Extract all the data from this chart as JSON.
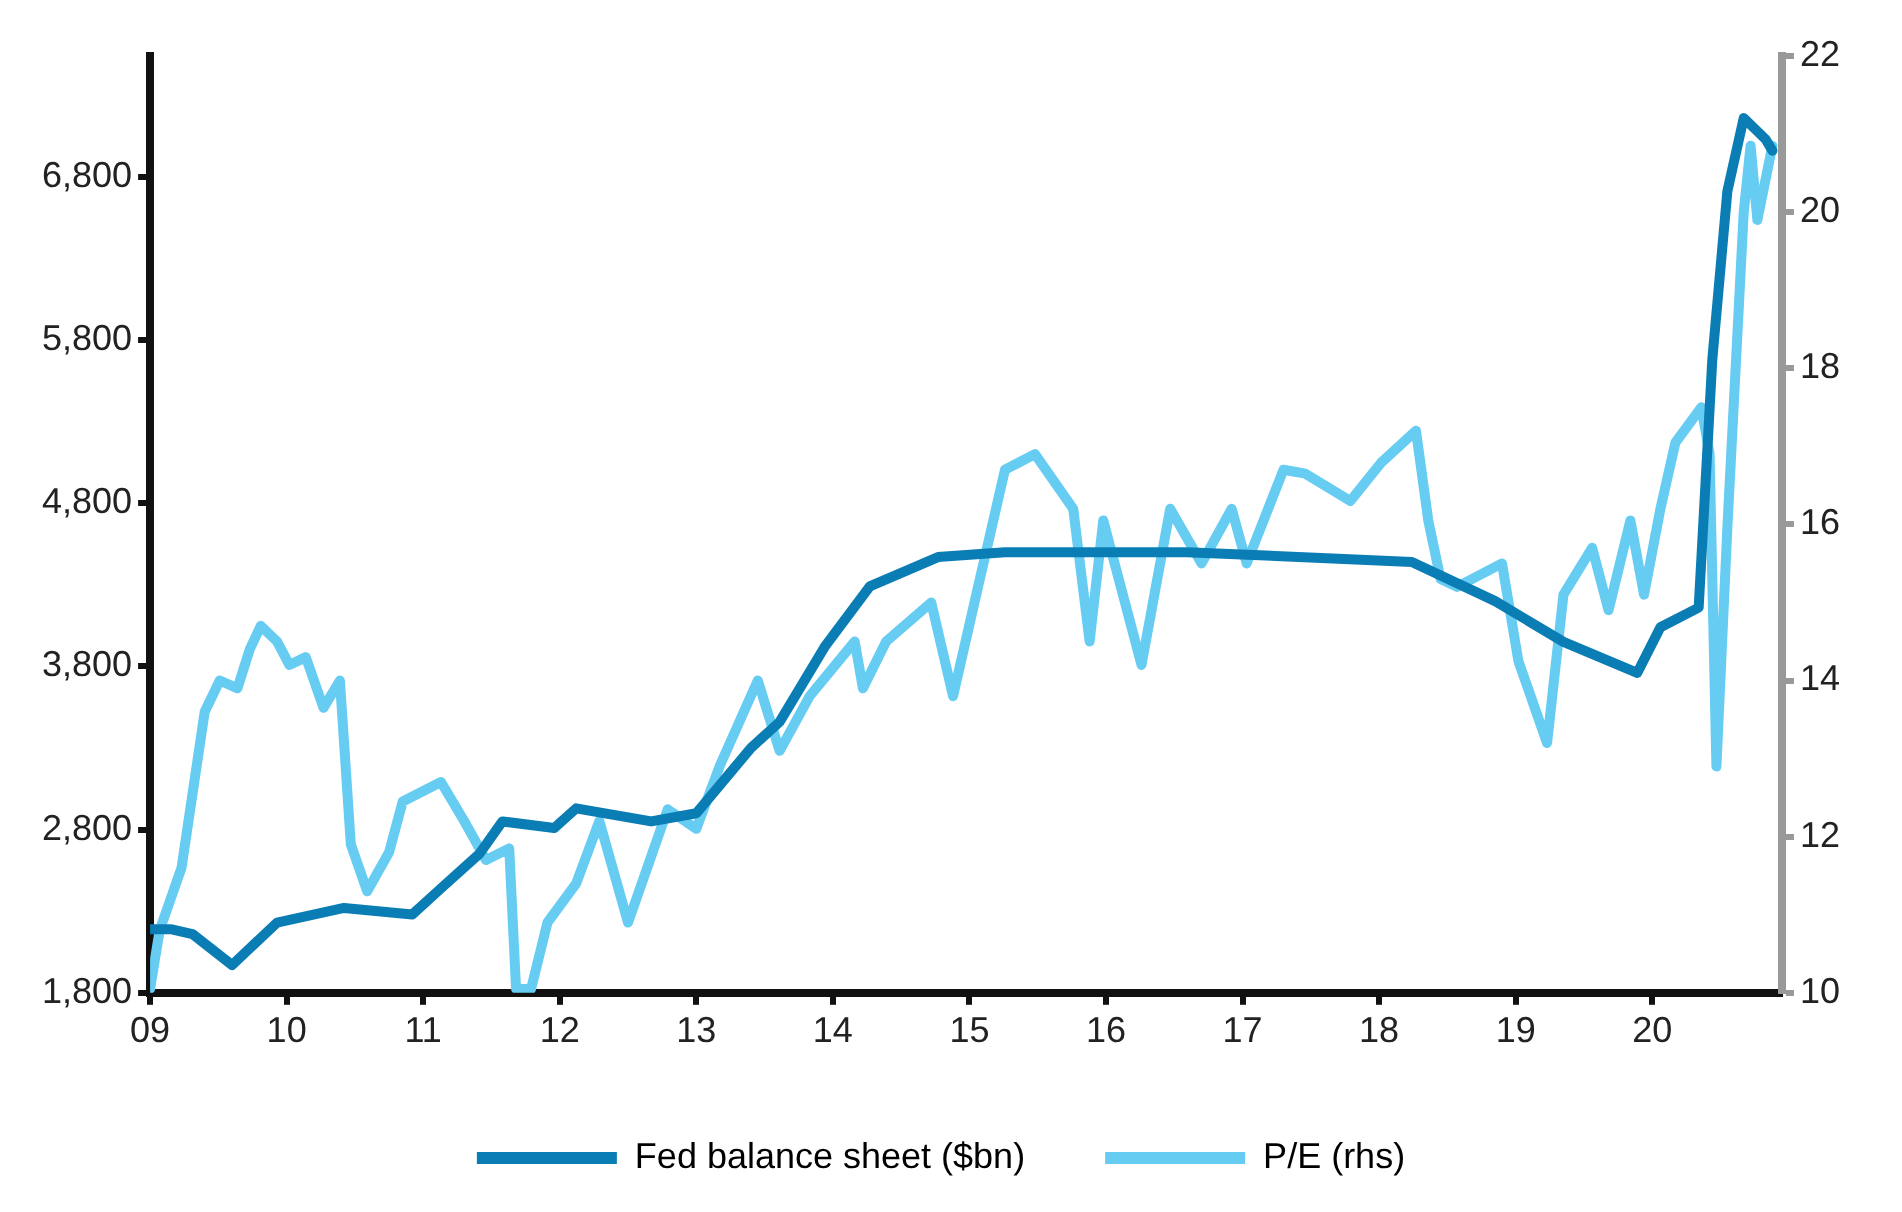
{
  "chart_data": {
    "type": "line",
    "legend": "bottom",
    "grid": false,
    "marker": "none",
    "line_style": "solid",
    "xlim": [
      2009,
      2020.95
    ],
    "xticks": [
      {
        "value": 2009,
        "label": "09"
      },
      {
        "value": 2010,
        "label": "10"
      },
      {
        "value": 2011,
        "label": "11"
      },
      {
        "value": 2012,
        "label": "12"
      },
      {
        "value": 2013,
        "label": "13"
      },
      {
        "value": 2014,
        "label": "14"
      },
      {
        "value": 2015,
        "label": "15"
      },
      {
        "value": 2016,
        "label": "16"
      },
      {
        "value": 2017,
        "label": "17"
      },
      {
        "value": 2018,
        "label": "18"
      },
      {
        "value": 2019,
        "label": "19"
      },
      {
        "value": 2020,
        "label": "20"
      }
    ],
    "ylim": [
      1800,
      7540
    ],
    "yticks": [
      {
        "value": 1800,
        "label": "1,800"
      },
      {
        "value": 2800,
        "label": "2,800"
      },
      {
        "value": 3800,
        "label": "3,800"
      },
      {
        "value": 4800,
        "label": "4,800"
      },
      {
        "value": 5800,
        "label": "5,800"
      },
      {
        "value": 6800,
        "label": "6,800"
      }
    ],
    "y2lim": [
      10,
      22
    ],
    "y2ticks": [
      10,
      12,
      14,
      16,
      18,
      20,
      22
    ],
    "series": [
      {
        "name": "Fed balance sheet ($bn)",
        "color": "#0a7db5",
        "x": [
          2009.0,
          2009.15,
          2009.31,
          2009.6,
          2009.93,
          2010.42,
          2010.92,
          2011.13,
          2011.41,
          2011.58,
          2011.96,
          2012.12,
          2012.67,
          2013.0,
          2013.4,
          2013.61,
          2013.94,
          2014.27,
          2014.77,
          2015.26,
          2016.59,
          2018.24,
          2018.85,
          2019.35,
          2019.89,
          2020.06,
          2020.34,
          2020.44,
          2020.55,
          2020.67,
          2020.83,
          2020.88
        ],
        "values": [
          2190,
          2190,
          2160,
          1970,
          2230,
          2320,
          2280,
          2440,
          2650,
          2850,
          2810,
          2930,
          2850,
          2900,
          3300,
          3460,
          3920,
          4290,
          4470,
          4500,
          4500,
          4440,
          4200,
          3950,
          3760,
          4040,
          4160,
          5680,
          6710,
          7160,
          7030,
          6960
        ]
      },
      {
        "name": "P/E (rhs)",
        "color": "#66ccf2",
        "axis": "y2",
        "x": [
          2009.0,
          2009.07,
          2009.23,
          2009.4,
          2009.51,
          2009.64,
          2009.73,
          2009.81,
          2009.93,
          2010.02,
          2010.14,
          2010.27,
          2010.39,
          2010.47,
          2010.59,
          2010.75,
          2010.85,
          2011.13,
          2011.3,
          2011.46,
          2011.63,
          2011.68,
          2011.79,
          2011.91,
          2012.12,
          2012.29,
          2012.5,
          2012.79,
          2013.0,
          2013.17,
          2013.45,
          2013.61,
          2013.83,
          2014.16,
          2014.22,
          2014.39,
          2014.72,
          2014.88,
          2015.05,
          2015.26,
          2015.48,
          2015.76,
          2015.88,
          2015.98,
          2016.26,
          2016.47,
          2016.7,
          2016.92,
          2017.03,
          2017.3,
          2017.46,
          2017.79,
          2018.02,
          2018.27,
          2018.36,
          2018.45,
          2018.57,
          2018.9,
          2019.02,
          2019.23,
          2019.35,
          2019.56,
          2019.68,
          2019.84,
          2019.94,
          2020.06,
          2020.17,
          2020.36,
          2020.42,
          2020.47,
          2020.55,
          2020.67,
          2020.72,
          2020.77,
          2020.88
        ],
        "values": [
          10.05,
          10.8,
          11.6,
          13.6,
          14.0,
          13.9,
          14.4,
          14.7,
          14.5,
          14.2,
          14.3,
          13.65,
          14.0,
          11.9,
          11.3,
          11.8,
          12.45,
          12.7,
          12.2,
          11.7,
          11.85,
          10.05,
          10.05,
          10.9,
          11.4,
          12.2,
          10.9,
          12.35,
          12.1,
          12.9,
          14.0,
          13.1,
          13.8,
          14.5,
          13.9,
          14.5,
          15.0,
          13.8,
          15.1,
          16.7,
          16.9,
          16.2,
          14.5,
          16.05,
          14.2,
          16.2,
          15.5,
          16.2,
          15.5,
          16.7,
          16.65,
          16.3,
          16.8,
          17.2,
          16.05,
          15.3,
          15.2,
          15.5,
          14.25,
          13.2,
          15.1,
          15.7,
          14.9,
          16.05,
          15.1,
          16.2,
          17.05,
          17.5,
          16.9,
          12.9,
          15.95,
          20.0,
          20.85,
          19.9,
          20.85
        ]
      }
    ]
  }
}
